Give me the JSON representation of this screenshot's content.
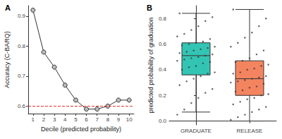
{
  "chart_data": [
    {
      "type": "line",
      "title": "A",
      "x_label": "Decile (predicted probability)",
      "y_label": "Accuracy (C-BARQ)",
      "x": [
        1,
        2,
        3,
        4,
        5,
        6,
        7,
        8,
        9,
        10
      ],
      "values": [
        0.92,
        0.78,
        0.73,
        0.67,
        0.62,
        0.59,
        0.59,
        0.6,
        0.62,
        0.62
      ],
      "color": "#333333",
      "marker": "circle",
      "xlim": [
        0.55,
        10.45
      ],
      "xticks": [
        1,
        2,
        3,
        4,
        5,
        6,
        7,
        8,
        9,
        10
      ],
      "ylim": [
        0.575,
        0.935
      ],
      "yticks": [
        0.6,
        0.7,
        0.8,
        0.9
      ],
      "hline": {
        "value": 0.6,
        "color": "#e8312a",
        "line_style": "dashed"
      },
      "grid": false
    },
    {
      "type": "boxplot",
      "title": "B",
      "y_label": "predicted probability of graduation",
      "categories": [
        "GRADUATE",
        "RELEASE"
      ],
      "boxes": [
        {
          "name": "GRADUATE",
          "color": "#33c5b3",
          "stats": [
            0.07,
            0.36,
            0.51,
            0.61,
            0.84
          ],
          "points": [
            0.05,
            0.09,
            0.14,
            0.18,
            0.22,
            0.25,
            0.28,
            0.31,
            0.33,
            0.35,
            0.37,
            0.38,
            0.4,
            0.42,
            0.43,
            0.45,
            0.46,
            0.47,
            0.48,
            0.49,
            0.5,
            0.51,
            0.52,
            0.53,
            0.54,
            0.55,
            0.56,
            0.57,
            0.58,
            0.59,
            0.6,
            0.61,
            0.62,
            0.64,
            0.66,
            0.68,
            0.71,
            0.74,
            0.78,
            0.81,
            0.84
          ]
        },
        {
          "name": "RELEASE",
          "color": "#f4845f",
          "stats": [
            0.0,
            0.2,
            0.33,
            0.47,
            0.87
          ],
          "points": [
            0.01,
            0.03,
            0.05,
            0.07,
            0.09,
            0.11,
            0.13,
            0.15,
            0.17,
            0.18,
            0.2,
            0.21,
            0.23,
            0.24,
            0.26,
            0.27,
            0.29,
            0.3,
            0.31,
            0.32,
            0.33,
            0.34,
            0.35,
            0.37,
            0.38,
            0.4,
            0.41,
            0.43,
            0.44,
            0.46,
            0.47,
            0.49,
            0.52,
            0.55,
            0.58,
            0.61,
            0.65,
            0.69,
            0.74,
            0.8,
            0.87
          ]
        }
      ],
      "point_color": "#333333",
      "ylim": [
        -0.03,
        0.9
      ],
      "yticks": [
        {
          "value": 0,
          "label": "0.0"
        },
        {
          "value": 0.2,
          "label": "0.2"
        },
        {
          "value": 0.4,
          "label": "0.4"
        },
        {
          "value": 0.6,
          "label": "0.6"
        },
        {
          "value": 0.8,
          "label": "0.8"
        }
      ],
      "grid": false
    }
  ]
}
